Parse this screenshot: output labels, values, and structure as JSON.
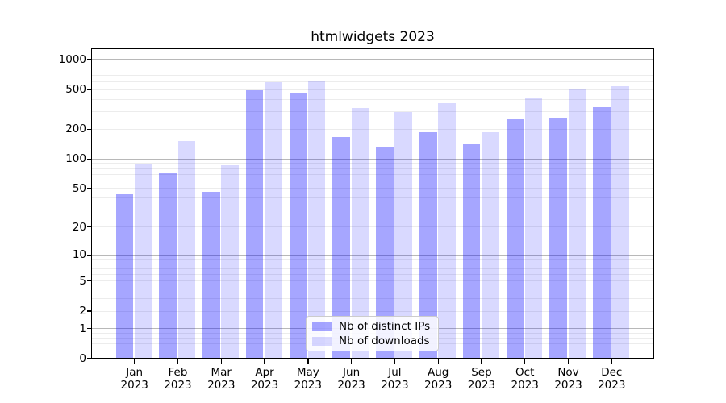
{
  "chart": {
    "title": "htmlwidgets 2023"
  },
  "legend": {
    "items": [
      {
        "label": "Nb of distinct IPs",
        "series": "ips"
      },
      {
        "label": "Nb of downloads",
        "series": "downloads"
      }
    ]
  },
  "colors": {
    "bar_ips": "rgba(0,0,255,0.35)",
    "bar_downloads": "rgba(0,0,255,0.15)",
    "grid_major": "#b8b8b8",
    "grid_minor": "#ececec",
    "axis": "#000000",
    "legend_border": "#cccccc"
  },
  "chart_data": {
    "type": "bar",
    "title": "htmlwidgets 2023",
    "categories": [
      "Jan",
      "Feb",
      "Mar",
      "Apr",
      "May",
      "Jun",
      "Jul",
      "Aug",
      "Sep",
      "Oct",
      "Nov",
      "Dec"
    ],
    "year": "2023",
    "series": [
      {
        "name": "Nb of distinct IPs",
        "values": [
          44,
          72,
          46,
          495,
          458,
          166,
          131,
          188,
          141,
          252,
          262,
          335
        ]
      },
      {
        "name": "Nb of downloads",
        "values": [
          90,
          151,
          87,
          590,
          608,
          326,
          300,
          364,
          188,
          415,
          505,
          537
        ]
      }
    ],
    "y_scale": "log1p",
    "y_ticks": [
      0,
      1,
      2,
      5,
      10,
      20,
      50,
      100,
      200,
      500,
      1000
    ],
    "ylim": [
      0,
      1300
    ],
    "grid": "horizontal-only, dark lines at powers of 10, light minor lines between",
    "legend_position": "inside bottom-center"
  }
}
